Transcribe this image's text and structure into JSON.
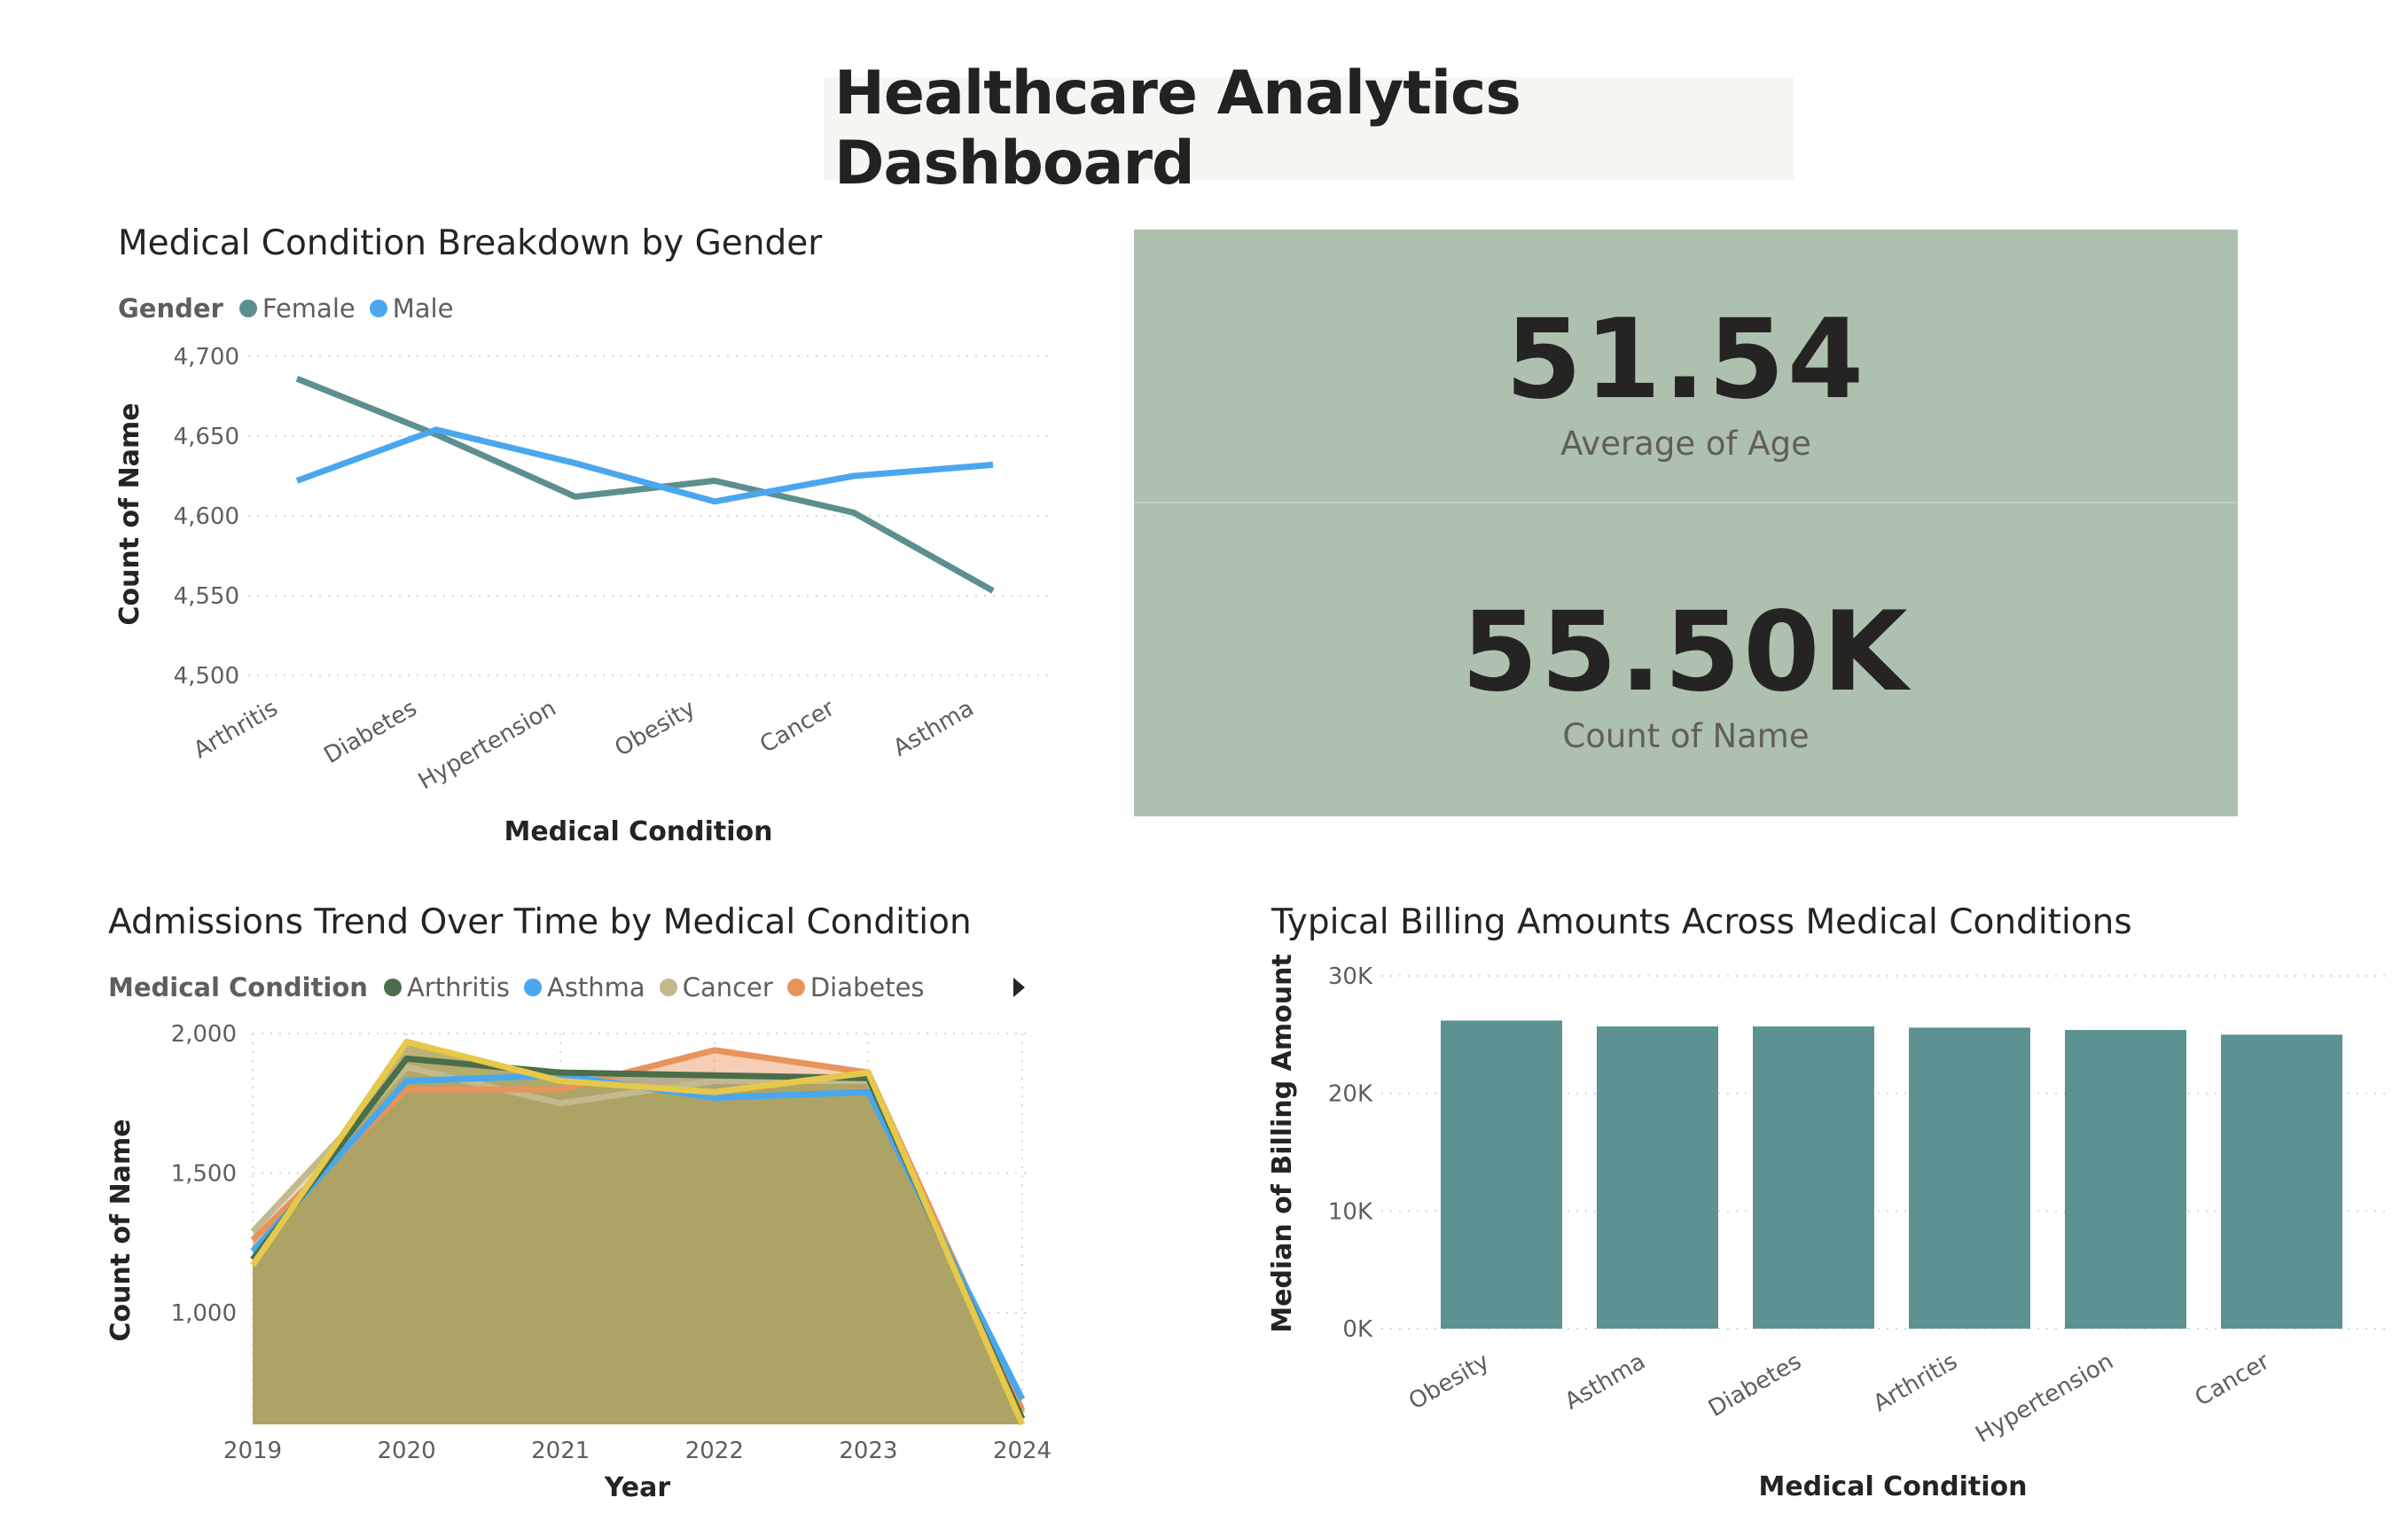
{
  "page": {
    "title": "Healthcare Analytics Dashboard"
  },
  "kpis": [
    {
      "value": "51.54",
      "label": "Average of Age"
    },
    {
      "value": "55.50K",
      "label": "Count of Name"
    }
  ],
  "colors": {
    "female": "#5c8f8f",
    "male": "#4aa7ee",
    "arthritis": "#4a6e4a",
    "asthma": "#4aa7ee",
    "cancer": "#c3b98f",
    "diabetes": "#e8935c",
    "area_fill": "#b1a55e",
    "area_top": "#e6c84a",
    "bar": "#5c9292",
    "kpi_bg": "#aec1ae"
  },
  "chart_data": [
    {
      "type": "line",
      "title": "Medical Condition Breakdown by Gender",
      "legend_title": "Gender",
      "legend_position": "top-left",
      "xlabel": "Medical Condition",
      "ylabel": "Count of Name",
      "categories": [
        "Arthritis",
        "Diabetes",
        "Hypertension",
        "Obesity",
        "Cancer",
        "Asthma"
      ],
      "ylim": [
        4500,
        4700
      ],
      "yticks": [
        "4,700",
        "4,650",
        "4,600",
        "4,550",
        "4,500"
      ],
      "grid": true,
      "series": [
        {
          "name": "Female",
          "values": [
            4686,
            4651,
            4612,
            4622,
            4602,
            4553
          ]
        },
        {
          "name": "Male",
          "values": [
            4622,
            4654,
            4633,
            4609,
            4625,
            4632
          ]
        }
      ]
    },
    {
      "type": "area",
      "title": "Admissions Trend Over Time by Medical Condition",
      "legend_title": "Medical Condition",
      "legend_position": "top-left",
      "legend_items": [
        "Arthritis",
        "Asthma",
        "Cancer",
        "Diabetes"
      ],
      "xlabel": "Year",
      "ylabel": "Count of Name",
      "x": [
        "2019",
        "2020",
        "2021",
        "2022",
        "2023",
        "2024"
      ],
      "ylim": [
        600,
        2000
      ],
      "yticks": [
        "2,000",
        "1,500",
        "1,000"
      ],
      "grid": true,
      "series": [
        {
          "name": "Arthritis",
          "values": [
            1190,
            1910,
            1860,
            1850,
            1840,
            620
          ]
        },
        {
          "name": "Asthma",
          "values": [
            1220,
            1830,
            1850,
            1770,
            1790,
            690
          ]
        },
        {
          "name": "Cancer",
          "values": [
            1290,
            1880,
            1750,
            1830,
            1830,
            640
          ]
        },
        {
          "name": "Diabetes",
          "values": [
            1260,
            1800,
            1800,
            1940,
            1860,
            650
          ]
        },
        {
          "name": "",
          "values": [
            1170,
            1970,
            1830,
            1790,
            1860,
            600
          ]
        }
      ]
    },
    {
      "type": "bar",
      "title": "Typical Billing Amounts Across Medical Conditions",
      "xlabel": "Medical Condition",
      "ylabel": "Median of Billing Amount",
      "categories": [
        "Obesity",
        "Asthma",
        "Diabetes",
        "Arthritis",
        "Hypertension",
        "Cancer"
      ],
      "values": [
        26200,
        25700,
        25700,
        25600,
        25400,
        25000
      ],
      "ylim": [
        0,
        30000
      ],
      "yticks": [
        "30K",
        "20K",
        "10K",
        "0K"
      ],
      "grid": true
    }
  ]
}
